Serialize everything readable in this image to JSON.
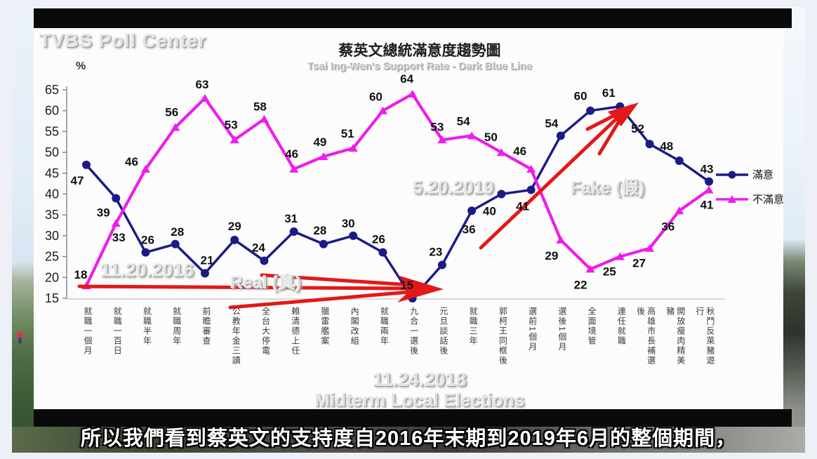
{
  "watermarks": {
    "brand": "TVBS Poll Center",
    "date_start": "11.20.2016",
    "real": "Real (真)",
    "date_mid": "5.20.2019",
    "fake": "Fake (假)",
    "date_election": "11.24.2018",
    "election_caption": "Midterm Local Elections"
  },
  "colors": {
    "satisfied_blue": "#1b1b86",
    "dissatisfied_magenta": "#ee1cee",
    "annotation_red": "#e41818",
    "axis_gray": "#8a8a8a",
    "baseline_gray": "#cccccc"
  },
  "chart_data": {
    "type": "line",
    "title": "蔡英文總統滿意度趨勢圖",
    "subtitle": "Tsai Ing-Wen's Support Rate - Dark Blue Line",
    "ylabel": "%",
    "ylim": [
      15,
      65
    ],
    "yticks": [
      65,
      60,
      55,
      50,
      45,
      40,
      35,
      30,
      25,
      20,
      15
    ],
    "grid": false,
    "legend_position": "right",
    "categories": [
      "就職一個月",
      "就職一百日",
      "就職半年",
      "就職周年",
      "前瞻審查",
      "公教年金三讀",
      "全台大停電",
      "賴清德上任",
      "獵雷艦案",
      "內閣改組",
      "就職兩年",
      "九合一選後",
      "元旦談話後",
      "就職三年",
      "郭柯王同框後",
      "選前1個月",
      "選後1個月",
      "全面境管",
      "連任就職",
      "高雄市長補選後",
      "開放瘦肉精美豬",
      "秋鬥反萊豬遊行"
    ],
    "series": [
      {
        "name": "滿意",
        "marker": "circle",
        "values": [
          47,
          39,
          26,
          28,
          21,
          29,
          24,
          31,
          28,
          30,
          26,
          15,
          23,
          36,
          40,
          41,
          54,
          60,
          61,
          52,
          48,
          43
        ],
        "label_offsets": [
          [
            -13,
            28
          ],
          [
            -18,
            26
          ],
          [
            3,
            -12
          ],
          [
            3,
            -12
          ],
          [
            3,
            -13
          ],
          [
            0,
            -14
          ],
          [
            -8,
            -13
          ],
          [
            -4,
            -13
          ],
          [
            -5,
            -14
          ],
          [
            -7,
            -12
          ],
          [
            -6,
            -13
          ],
          [
            -8,
            -13
          ],
          [
            -9,
            -13
          ],
          [
            -4,
            32
          ],
          [
            -17,
            30
          ],
          [
            -12,
            29
          ],
          [
            -13,
            -12
          ],
          [
            -14,
            -15
          ],
          [
            -16,
            -14
          ],
          [
            -17,
            -16
          ],
          [
            -18,
            -15
          ],
          [
            -3,
            -12
          ]
        ]
      },
      {
        "name": "不滿意",
        "marker": "triangle",
        "values": [
          18,
          33,
          46,
          56,
          63,
          53,
          58,
          46,
          49,
          51,
          60,
          64,
          53,
          54,
          50,
          46,
          29,
          22,
          25,
          27,
          36,
          41
        ],
        "label_offsets": [
          [
            -8,
            -10
          ],
          [
            4,
            26
          ],
          [
            -20,
            -5
          ],
          [
            -5,
            -16
          ],
          [
            -4,
            -14
          ],
          [
            -5,
            -16
          ],
          [
            -6,
            -12
          ],
          [
            -3,
            -16
          ],
          [
            -5,
            -15
          ],
          [
            -8,
            -15
          ],
          [
            -10,
            -14
          ],
          [
            -8,
            -16
          ],
          [
            -7,
            -13
          ],
          [
            -12,
            -15
          ],
          [
            -15,
            -16
          ],
          [
            -16,
            -20
          ],
          [
            -13,
            28
          ],
          [
            -14,
            28
          ],
          [
            -15,
            27
          ],
          [
            -15,
            27
          ],
          [
            -16,
            28
          ],
          [
            -3,
            27
          ]
        ]
      }
    ]
  },
  "subtitle_bar": {
    "text": "所以我們看到蔡英文的支持度自2016年末期到2019年6月的整個期間，"
  }
}
